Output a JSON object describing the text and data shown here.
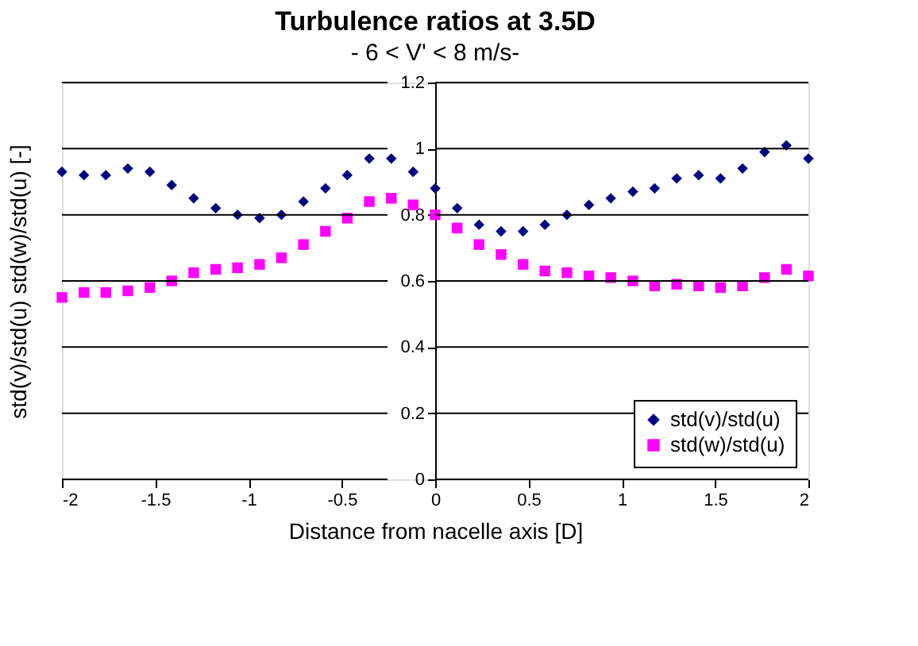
{
  "chart_data": {
    "type": "scatter",
    "title": "Turbulence ratios at 3.5D",
    "subtitle": "- 6 < V' < 8 m/s-",
    "xlabel": "Distance from nacelle axis [D]",
    "ylabel": "std(v)/std(u) std(w)/std(u) [-]",
    "x": [
      -2,
      -1.882,
      -1.765,
      -1.647,
      -1.529,
      -1.412,
      -1.294,
      -1.176,
      -1.059,
      -0.941,
      -0.824,
      -0.706,
      -0.588,
      -0.471,
      -0.353,
      -0.235,
      -0.118,
      0,
      0.118,
      0.235,
      0.353,
      0.471,
      0.588,
      0.706,
      0.824,
      0.941,
      1.059,
      1.176,
      1.294,
      1.412,
      1.529,
      1.647,
      1.765,
      1.882,
      2
    ],
    "series": [
      {
        "name": "std(v)/std(u)",
        "color": "#000080",
        "marker": "diamond",
        "values": [
          0.93,
          0.92,
          0.92,
          0.94,
          0.93,
          0.89,
          0.85,
          0.82,
          0.8,
          0.79,
          0.8,
          0.84,
          0.88,
          0.92,
          0.97,
          0.97,
          0.93,
          0.88,
          0.82,
          0.77,
          0.75,
          0.75,
          0.77,
          0.8,
          0.83,
          0.85,
          0.87,
          0.88,
          0.91,
          0.92,
          0.91,
          0.94,
          0.99,
          1.01,
          0.97
        ]
      },
      {
        "name": "std(w)/std(u)",
        "color": "#ff00ff",
        "marker": "square",
        "values": [
          0.55,
          0.565,
          0.565,
          0.57,
          0.58,
          0.6,
          0.625,
          0.635,
          0.64,
          0.65,
          0.67,
          0.71,
          0.75,
          0.79,
          0.84,
          0.85,
          0.83,
          0.8,
          0.76,
          0.71,
          0.68,
          0.65,
          0.63,
          0.625,
          0.615,
          0.61,
          0.6,
          0.585,
          0.59,
          0.585,
          0.58,
          0.585,
          0.61,
          0.635,
          0.615
        ]
      }
    ],
    "xlim": [
      -2,
      2
    ],
    "xticks": [
      -2,
      -1.5,
      -1,
      -0.5,
      0,
      0.5,
      1,
      1.5,
      2
    ],
    "ylim": [
      0,
      1.2
    ],
    "yticks": [
      0,
      0.2,
      0.4,
      0.6,
      0.8,
      1,
      1.2
    ],
    "grid": "y",
    "legend": "bottom right"
  }
}
